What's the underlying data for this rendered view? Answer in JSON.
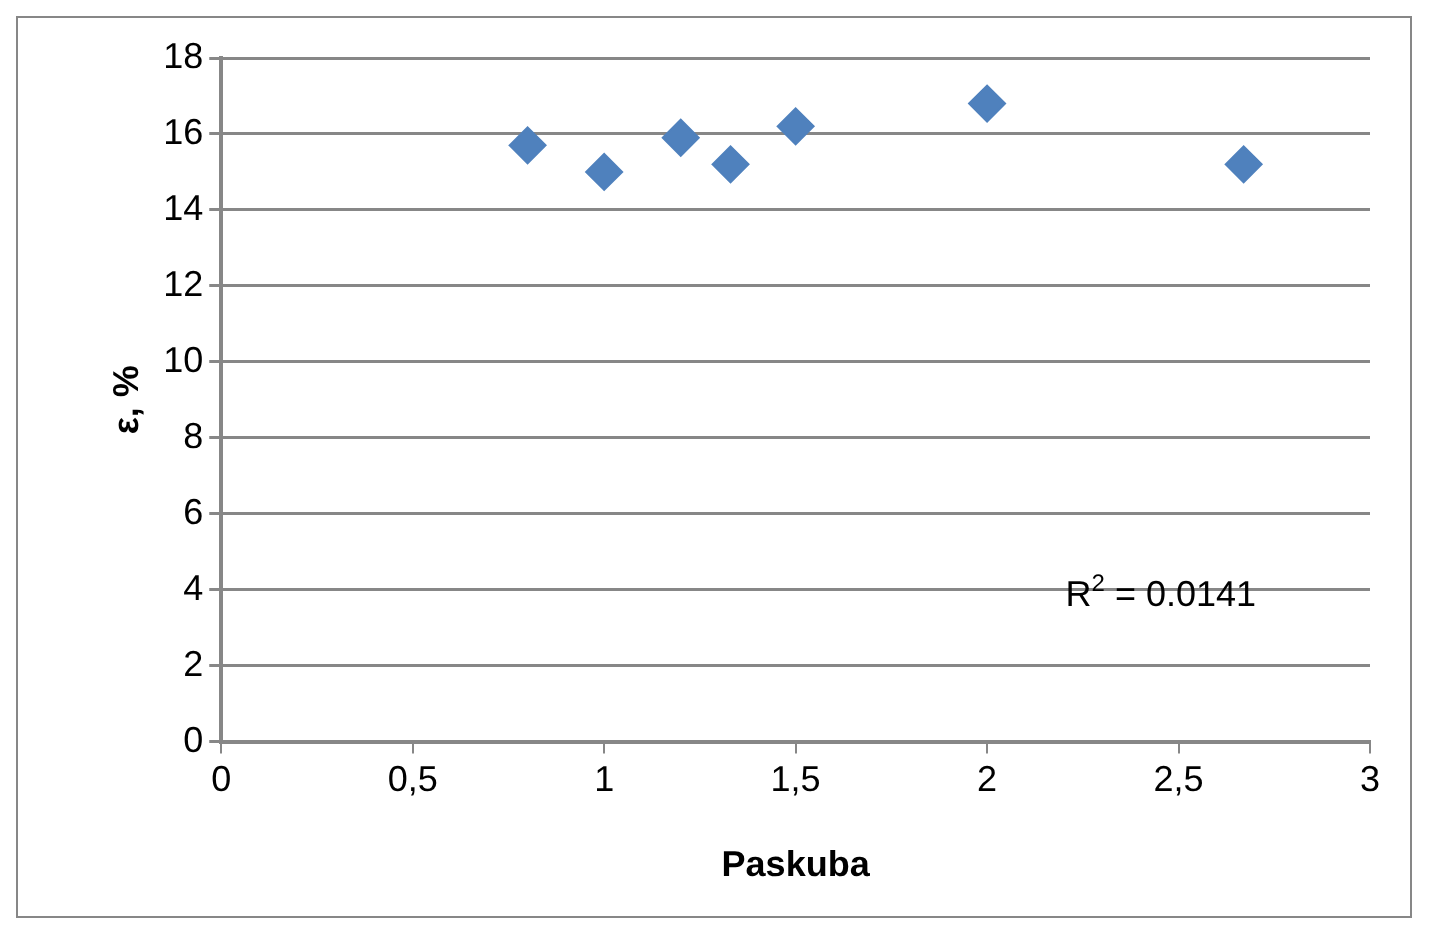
{
  "chart_data": {
    "type": "scatter",
    "xlabel": "Paskuba",
    "ylabel": "ε, %",
    "x": [
      0.8,
      1,
      1.2,
      1.33,
      1.5,
      2,
      2.67
    ],
    "series": [
      {
        "color": "#4f81bd",
        "values": [
          15.7,
          15.0,
          15.9,
          15.2,
          16.2,
          16.8,
          15.2
        ]
      }
    ],
    "marker": "diamond",
    "grid": "y",
    "xlim": [
      0,
      3
    ],
    "xticks": [
      0,
      {
        "value": 0.5,
        "label": "0,5"
      },
      1,
      {
        "value": 1.5,
        "label": "1,5"
      },
      2,
      {
        "value": 2.5,
        "label": "2,5"
      },
      3
    ],
    "ylim": [
      0,
      18
    ],
    "yticks": [
      0,
      2,
      4,
      6,
      8,
      10,
      12,
      14,
      16,
      18
    ],
    "annotations": [
      "R$^{2}$ = 0.0141"
    ]
  }
}
